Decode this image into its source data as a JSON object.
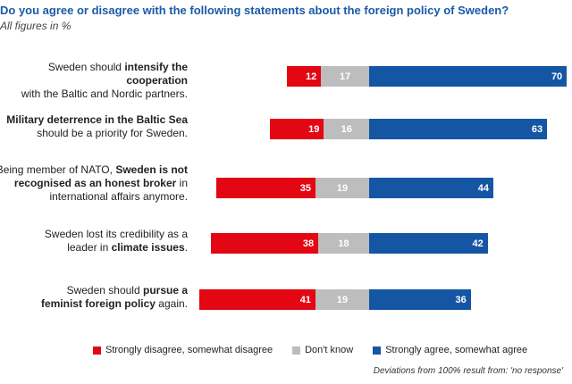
{
  "title": "Do you agree or disagree with the following statements about the foreign policy of Sweden?",
  "subtitle": "All figures in %",
  "footnote": "Deviations from 100% result from: 'no response'",
  "colors": {
    "disagree": "#e30613",
    "dontknow": "#bdbdbd",
    "agree": "#1556a4"
  },
  "chart_data": {
    "type": "bar",
    "orientation": "horizontal",
    "stacked": true,
    "categories": [
      "Sweden should intensify the cooperation with the Baltic and Nordic partners.",
      "Military deterrence in the Baltic Sea should be a priority for Sweden.",
      "Being member of NATO, Sweden is not recognised as an honest broker in international affairs anymore.",
      "Sweden lost its credibility as a leader in climate issues.",
      "Sweden should pursue a feminist foreign policy again."
    ],
    "category_labels": [
      [
        {
          "t": "Sweden should ",
          "b": false
        },
        {
          "t": "intensify the cooperation",
          "b": true
        },
        {
          "t": "\n",
          "b": false
        },
        {
          "t": "with the Baltic and Nordic partners.",
          "b": false
        }
      ],
      [
        {
          "t": "Military deterrence in the Baltic Sea",
          "b": true
        },
        {
          "t": "\n",
          "b": false
        },
        {
          "t": "should be a priority for Sweden.",
          "b": false
        }
      ],
      [
        {
          "t": "Being member of NATO, ",
          "b": false
        },
        {
          "t": "Sweden is not",
          "b": true
        },
        {
          "t": "\n",
          "b": false
        },
        {
          "t": "recognised as an honest broker",
          "b": true
        },
        {
          "t": " in",
          "b": false
        },
        {
          "t": "\n",
          "b": false
        },
        {
          "t": "international affairs anymore.",
          "b": false
        }
      ],
      [
        {
          "t": "Sweden lost its credibility as a",
          "b": false
        },
        {
          "t": "\n",
          "b": false
        },
        {
          "t": "leader in ",
          "b": false
        },
        {
          "t": "climate issues",
          "b": true
        },
        {
          "t": ".",
          "b": false
        }
      ],
      [
        {
          "t": "Sweden should ",
          "b": false
        },
        {
          "t": "pursue a",
          "b": true
        },
        {
          "t": "\n",
          "b": false
        },
        {
          "t": "feminist foreign policy",
          "b": true
        },
        {
          "t": " again.",
          "b": false
        }
      ]
    ],
    "series": [
      {
        "name": "Strongly disagree, somewhat disagree",
        "values": [
          12,
          19,
          35,
          38,
          41
        ]
      },
      {
        "name": "Don't know",
        "values": [
          17,
          16,
          19,
          18,
          19
        ]
      },
      {
        "name": "Strongly agree, somewhat agree",
        "values": [
          70,
          63,
          44,
          42,
          36
        ]
      }
    ],
    "legend_position": "bottom",
    "grid": false
  }
}
